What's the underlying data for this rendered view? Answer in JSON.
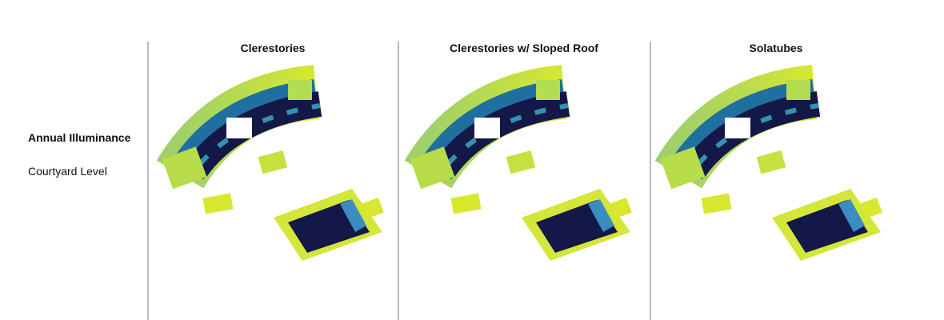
{
  "row": {
    "title": "Annual Illuminance",
    "subtitle": "Courtyard Level"
  },
  "columns": [
    "Clerestories",
    "Clerestories w/ Sloped Roof",
    "Solatubes"
  ]
}
